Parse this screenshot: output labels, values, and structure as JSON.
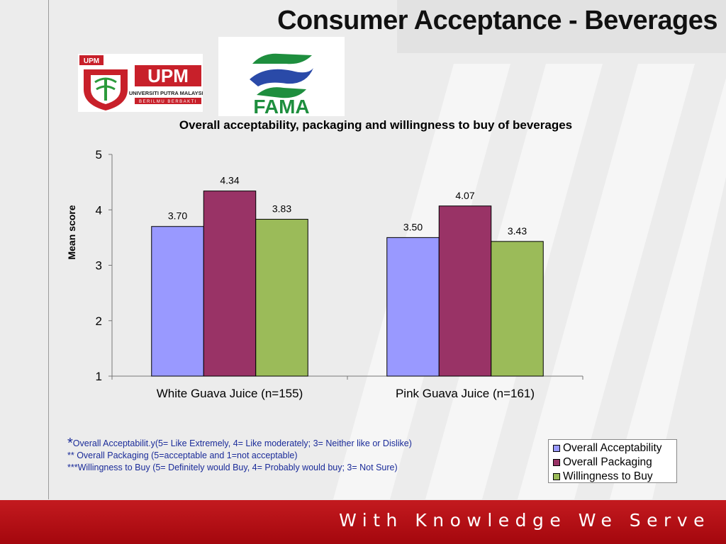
{
  "slide": {
    "title": "Consumer Acceptance - Beverages",
    "footer": "With Knowledge We Serve"
  },
  "logos": {
    "upm": {
      "abbr": "UPM",
      "name": "UNIVERSITI PUTRA MALAYSIA",
      "tagline": "BERILMU BERBAKTI",
      "color": "#c8202a"
    },
    "fama": {
      "name": "FAMA",
      "colors": [
        "#1e8e3e",
        "#2a4aa8"
      ]
    }
  },
  "chart_data": {
    "type": "bar",
    "title": "Overall acceptability, packaging and willingness to buy of beverages",
    "xlabel": "",
    "ylabel": "Mean score",
    "ylim": [
      1,
      5
    ],
    "yticks": [
      "1",
      "2",
      "3",
      "4",
      "5"
    ],
    "grid": false,
    "legend_position": "bottom-right",
    "categories": [
      "White Guava Juice (n=155)",
      "Pink Guava Juice (n=161)"
    ],
    "series": [
      {
        "name": "Overall Acceptability",
        "values": [
          3.7,
          3.5
        ],
        "labels": [
          "3.70",
          "3.50"
        ],
        "color": "#9999ff"
      },
      {
        "name": "Overall Packaging",
        "values": [
          4.34,
          4.07
        ],
        "labels": [
          "4.34",
          "4.07"
        ],
        "color": "#993366"
      },
      {
        "name": "Willingness to Buy",
        "values": [
          3.83,
          3.43
        ],
        "labels": [
          "3.83",
          "3.43"
        ],
        "color": "#9bbb59"
      }
    ]
  },
  "notes": {
    "star1": "*",
    "line1": "Overall Acceptabilit.y(5= Like Extremely, 4= Like  moderately; 3= Neither like or Dislike)",
    "line2": "** Overall Packaging (5=acceptable and 1=not acceptable)",
    "line3": "***Willingness to Buy (5= Definitely would Buy, 4= Probably would buy; 3= Not Sure)"
  }
}
